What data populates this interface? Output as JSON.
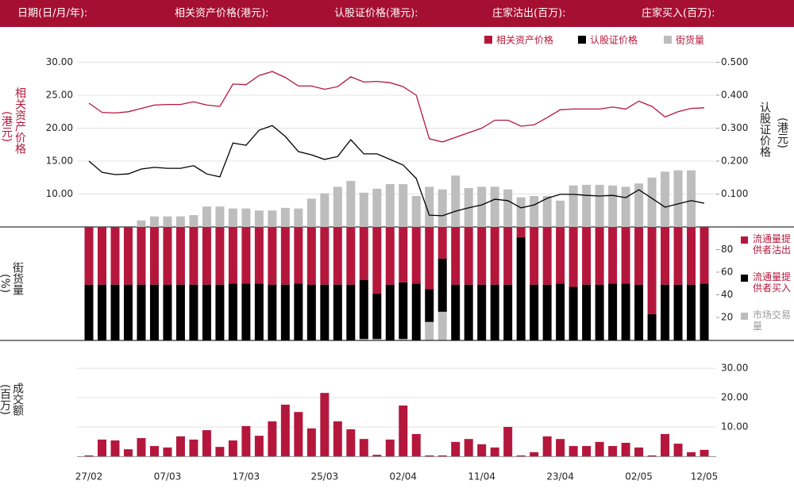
{
  "header": {
    "date": "日期(日/月/年):",
    "underlying": "相关资产价格(港元):",
    "warrant": "认股证价格(港元):",
    "sell": "庄家沽出(百万):",
    "buy": "庄家买入(百万):"
  },
  "chart_data": [
    {
      "type": "combo",
      "left_label": "相关资产价格",
      "left_unit": "(港元)",
      "right_label": "认股证价格",
      "right_unit": "(港元)",
      "ylim": [
        5,
        30
      ],
      "yticks": [
        {
          "value": 10,
          "label": "10.00"
        },
        {
          "value": 15,
          "label": "15.00"
        },
        {
          "value": 20,
          "label": "20.00"
        },
        {
          "value": 25,
          "label": "25.00"
        },
        {
          "value": 30,
          "label": "30.00"
        }
      ],
      "y2lim": [
        0,
        0.5
      ],
      "y2ticks": [
        {
          "value": 0.1,
          "label": "0.100"
        },
        {
          "value": 0.2,
          "label": "0.200"
        },
        {
          "value": 0.3,
          "label": "0.300"
        },
        {
          "value": 0.4,
          "label": "0.400"
        },
        {
          "value": 0.5,
          "label": "0.500"
        }
      ],
      "grid": true,
      "legend": "top-right",
      "series": [
        {
          "name": "相关资产价格",
          "color": "#b5173c",
          "kind": "line",
          "values": [
            23.8,
            22.4,
            22.3,
            22.5,
            23.0,
            23.5,
            23.6,
            23.6,
            24.0,
            23.5,
            23.3,
            26.7,
            26.6,
            28.0,
            28.6,
            27.7,
            26.4,
            26.4,
            25.9,
            26.3,
            27.8,
            27.0,
            27.1,
            26.9,
            26.3,
            25.0,
            18.4,
            17.9,
            18.6,
            19.3,
            20.0,
            21.2,
            21.2,
            20.3,
            20.5,
            21.6,
            22.8,
            22.9,
            22.9,
            22.9,
            23.2,
            22.9,
            24.1,
            23.3,
            21.7,
            22.5,
            23.0,
            23.1
          ]
        },
        {
          "name": "认股证价格",
          "color": "#000000",
          "kind": "line",
          "axis": "y2",
          "values": [
            0.2,
            0.166,
            0.159,
            0.161,
            0.176,
            0.181,
            0.178,
            0.178,
            0.186,
            0.161,
            0.152,
            0.255,
            0.248,
            0.294,
            0.308,
            0.275,
            0.229,
            0.219,
            0.205,
            0.214,
            0.265,
            0.222,
            0.222,
            0.205,
            0.188,
            0.147,
            0.036,
            0.034,
            0.048,
            0.058,
            0.067,
            0.084,
            0.08,
            0.058,
            0.067,
            0.087,
            0.099,
            0.099,
            0.096,
            0.094,
            0.096,
            0.089,
            0.113,
            0.087,
            0.06,
            0.07,
            0.08,
            0.072
          ]
        },
        {
          "name": "街货量",
          "color": "#bdbdbd",
          "kind": "bar",
          "values": [
            null,
            null,
            null,
            null,
            6.0,
            6.6,
            6.6,
            6.6,
            6.8,
            8.1,
            8.1,
            7.8,
            7.8,
            7.5,
            7.5,
            7.9,
            7.8,
            9.3,
            10.1,
            11.1,
            12.0,
            10.2,
            10.8,
            11.5,
            11.5,
            9.7,
            11.1,
            10.7,
            12.8,
            10.9,
            11.1,
            11.1,
            10.7,
            9.5,
            9.7,
            9.7,
            9.0,
            11.3,
            11.4,
            11.4,
            11.3,
            11.1,
            11.6,
            12.5,
            13.4,
            13.6,
            13.6,
            null
          ]
        }
      ]
    },
    {
      "type": "stacked_bar",
      "y_label": "街货量",
      "y_unit": "(%)",
      "ylim": [
        0,
        100
      ],
      "yticks": [
        20,
        40,
        60,
        80
      ],
      "legend": "right",
      "series": [
        {
          "name": "流通量提供者沽出",
          "color": "#b5173c",
          "values": [
            51,
            51,
            51,
            51,
            51,
            51,
            51,
            51,
            51,
            51,
            51,
            50,
            50,
            50,
            51,
            51,
            50,
            51,
            51,
            51,
            51,
            47,
            59,
            51,
            49,
            50,
            55,
            28,
            51,
            51,
            51,
            51,
            51,
            9,
            51,
            51,
            50,
            53,
            51,
            51,
            50,
            50,
            51,
            77,
            51,
            51,
            51,
            50
          ]
        },
        {
          "name": "流通量提供者买入",
          "color": "#000000",
          "values": [
            49,
            49,
            49,
            49,
            49,
            49,
            49,
            49,
            49,
            49,
            49,
            50,
            50,
            50,
            49,
            49,
            50,
            49,
            49,
            49,
            49,
            52,
            40,
            49,
            50,
            50,
            29,
            47,
            49,
            49,
            49,
            49,
            49,
            91,
            49,
            49,
            50,
            47,
            49,
            49,
            50,
            50,
            49,
            23,
            49,
            49,
            49,
            50
          ]
        },
        {
          "name": "市场交易量",
          "color": "#bdbdbd",
          "values": [
            0,
            0,
            0,
            0,
            0,
            0,
            0,
            0,
            0,
            0,
            0,
            0,
            0,
            0,
            0,
            0,
            0,
            0,
            0,
            0,
            0,
            1,
            1,
            0,
            1,
            0,
            16,
            25,
            0,
            0,
            0,
            0,
            0,
            0,
            0,
            0,
            0,
            0,
            0,
            0,
            0,
            0,
            0,
            0,
            0,
            0,
            0,
            0
          ]
        }
      ]
    },
    {
      "type": "bar",
      "y_label": "成交额",
      "y_unit": "(百万)",
      "color": "#b5173c",
      "grid": true,
      "ylim": [
        0,
        33
      ],
      "yticks": [
        {
          "value": 10,
          "label": "10.00"
        },
        {
          "value": 20,
          "label": "20.00"
        },
        {
          "value": 30,
          "label": "30.00"
        }
      ],
      "categories": [
        "27/02",
        null,
        null,
        null,
        null,
        null,
        "07/03",
        null,
        null,
        null,
        null,
        null,
        "17/03",
        null,
        null,
        null,
        null,
        null,
        "25/03",
        null,
        null,
        null,
        null,
        null,
        "02/04",
        null,
        null,
        null,
        null,
        null,
        "11/04",
        null,
        null,
        null,
        null,
        null,
        "23/04",
        null,
        null,
        null,
        null,
        null,
        "02/05",
        null,
        null,
        null,
        null,
        "12/05"
      ],
      "values": [
        0.3,
        5.7,
        5.4,
        2.4,
        6.2,
        3.5,
        3.0,
        6.8,
        5.7,
        8.9,
        3.2,
        5.4,
        10.3,
        7.0,
        11.9,
        17.6,
        15.1,
        9.5,
        21.6,
        11.9,
        9.2,
        5.9,
        0.5,
        5.7,
        17.3,
        7.6,
        0.3,
        0.3,
        4.9,
        5.9,
        4.1,
        3.0,
        10.0,
        0.3,
        1.4,
        6.8,
        5.9,
        3.5,
        3.5,
        4.9,
        3.5,
        4.6,
        3.0,
        0.3,
        7.6,
        4.3,
        1.4,
        2.2
      ]
    }
  ]
}
